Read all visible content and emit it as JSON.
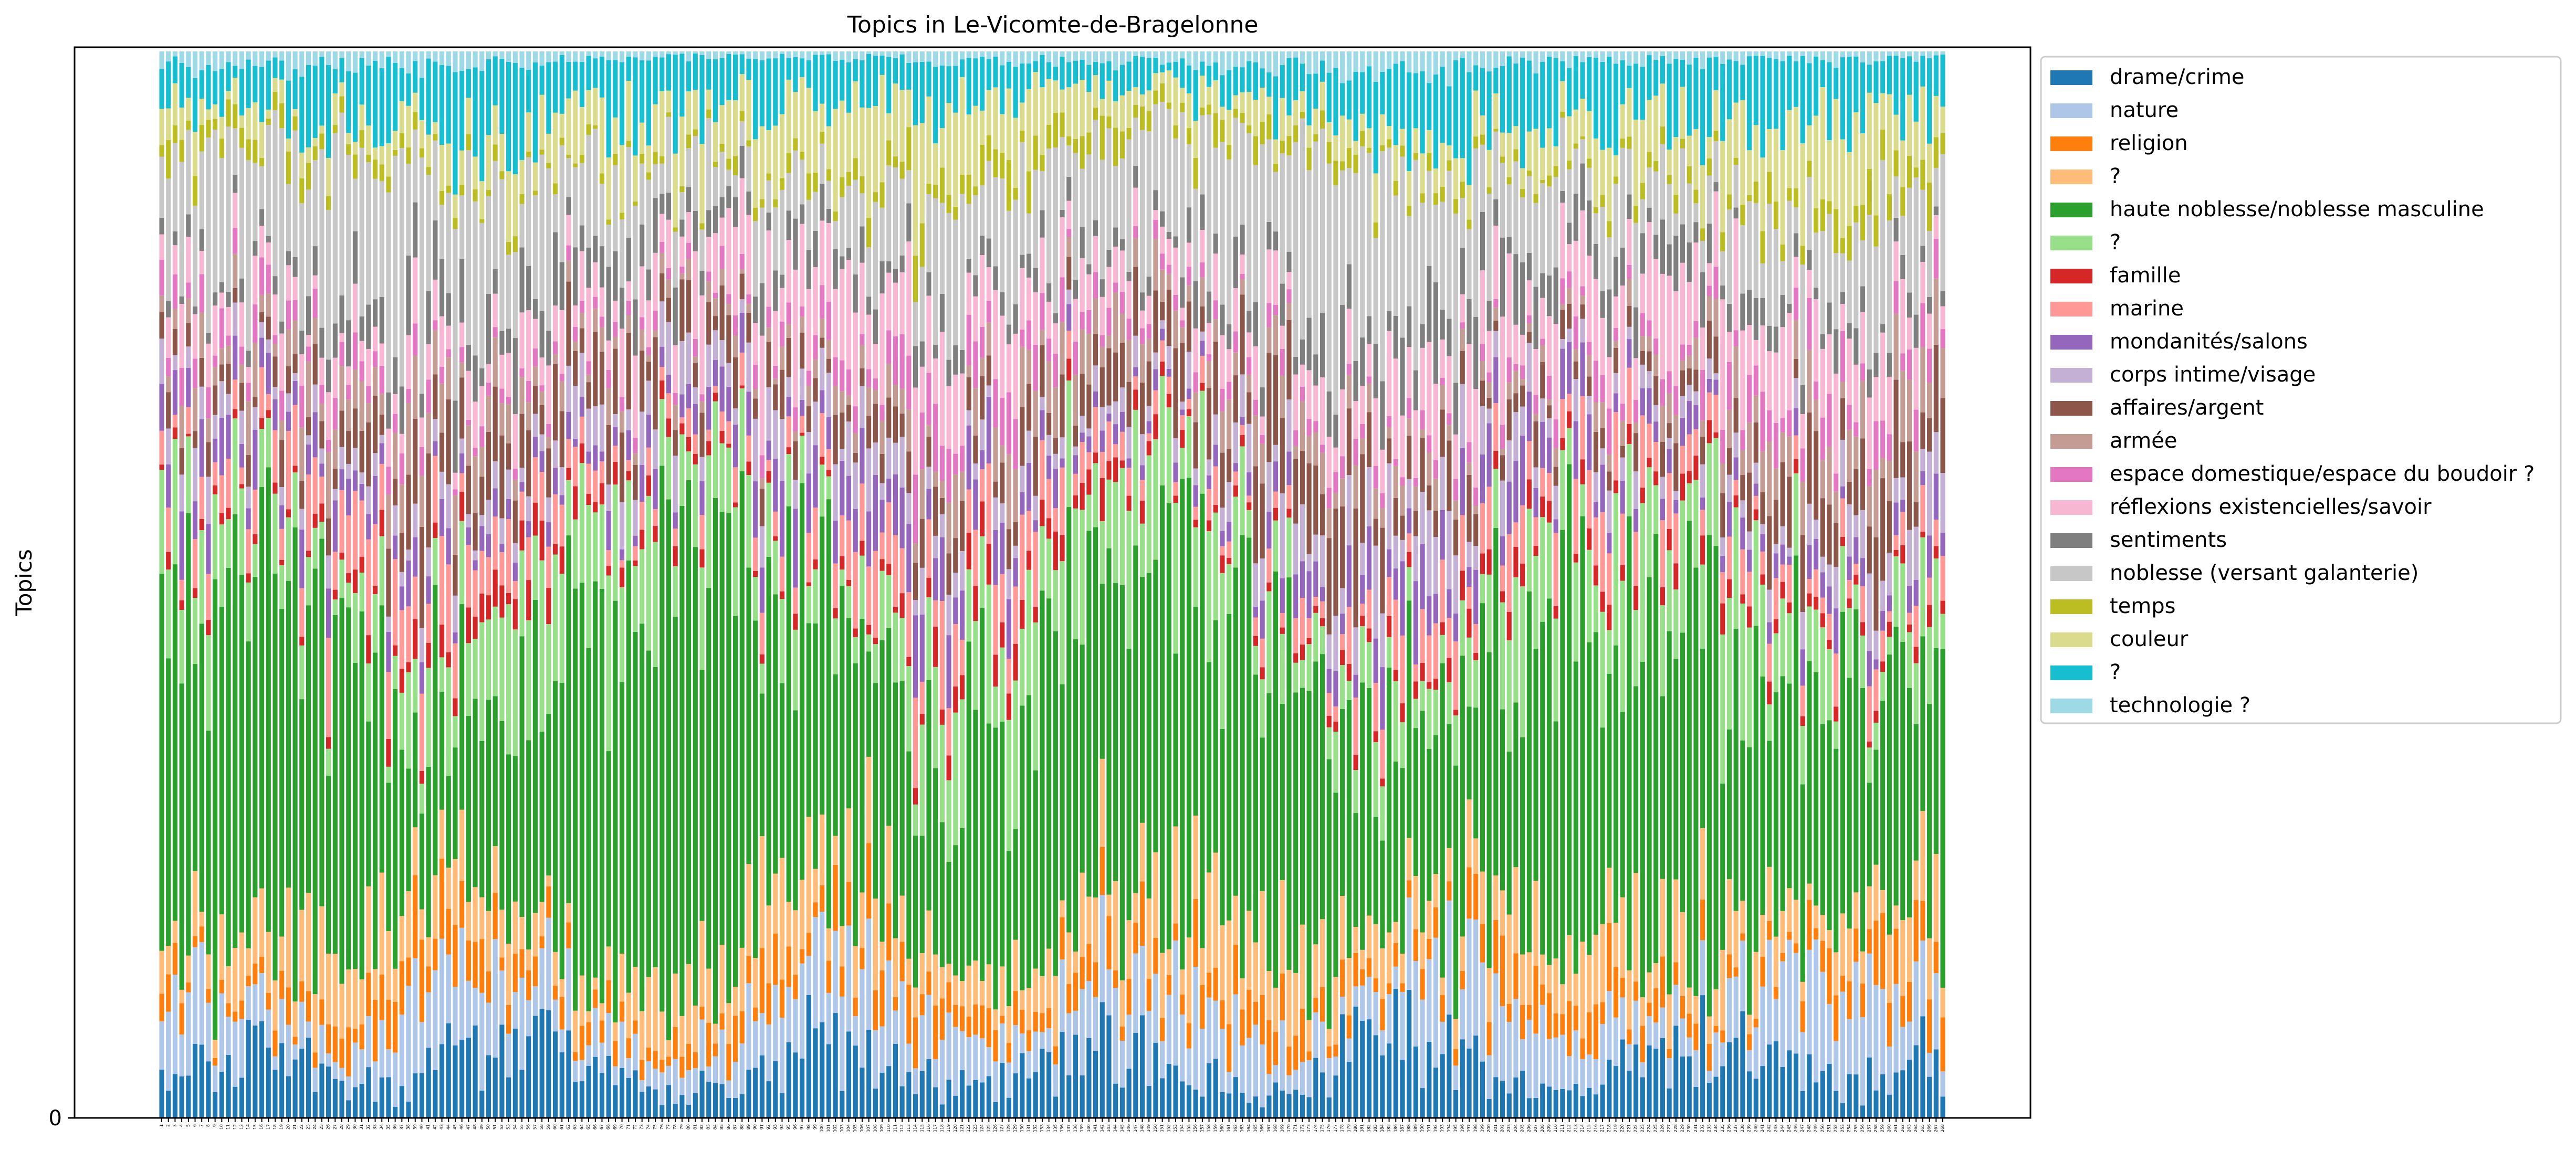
{
  "chart_data": {
    "type": "bar",
    "stacked": true,
    "title": "Topics in Le-Vicomte-de-Bragelonne",
    "xlabel": "",
    "ylabel": "Topics",
    "ytick_labels": [
      "0"
    ],
    "ylim": [
      0,
      1
    ],
    "x_ticks": {
      "first": 1,
      "last": 268,
      "step": 1
    },
    "legend_position": "right, outside plot",
    "grid": false,
    "series": [
      {
        "name": "drame/crime",
        "color": "#1f77b4",
        "mean": 0.045
      },
      {
        "name": "nature",
        "color": "#aec7e8",
        "mean": 0.05
      },
      {
        "name": "religion",
        "color": "#ff7f0e",
        "mean": 0.03
      },
      {
        "name": "?",
        "color": "#ffbb78",
        "mean": 0.05
      },
      {
        "name": "haute noblesse/noblesse masculine",
        "color": "#2ca02c",
        "mean": 0.28
      },
      {
        "name": "?",
        "color": "#98df8a",
        "mean": 0.07
      },
      {
        "name": "famille",
        "color": "#d62728",
        "mean": 0.015
      },
      {
        "name": "marine",
        "color": "#ff9896",
        "mean": 0.035
      },
      {
        "name": "mondanités/salons",
        "color": "#9467bd",
        "mean": 0.03
      },
      {
        "name": "corps intime/visage",
        "color": "#c5b0d5",
        "mean": 0.03
      },
      {
        "name": "affaires/argent",
        "color": "#8c564b",
        "mean": 0.04
      },
      {
        "name": "armée",
        "color": "#c49c94",
        "mean": 0.025
      },
      {
        "name": "espace domestique/espace du boudoir ?",
        "color": "#e377c2",
        "mean": 0.02
      },
      {
        "name": "réflexions existencielles/savoir",
        "color": "#f7b6d2",
        "mean": 0.05
      },
      {
        "name": "sentiments",
        "color": "#7f7f7f",
        "mean": 0.03
      },
      {
        "name": "noblesse (versant galanterie)",
        "color": "#c7c7c7",
        "mean": 0.09
      },
      {
        "name": "temps",
        "color": "#bcbd22",
        "mean": 0.015
      },
      {
        "name": "couleur",
        "color": "#dbdb8d",
        "mean": 0.04
      },
      {
        "name": "?",
        "color": "#17becf",
        "mean": 0.045
      },
      {
        "name": "technologie ?",
        "color": "#9edae5",
        "mean": 0.01
      }
    ]
  }
}
